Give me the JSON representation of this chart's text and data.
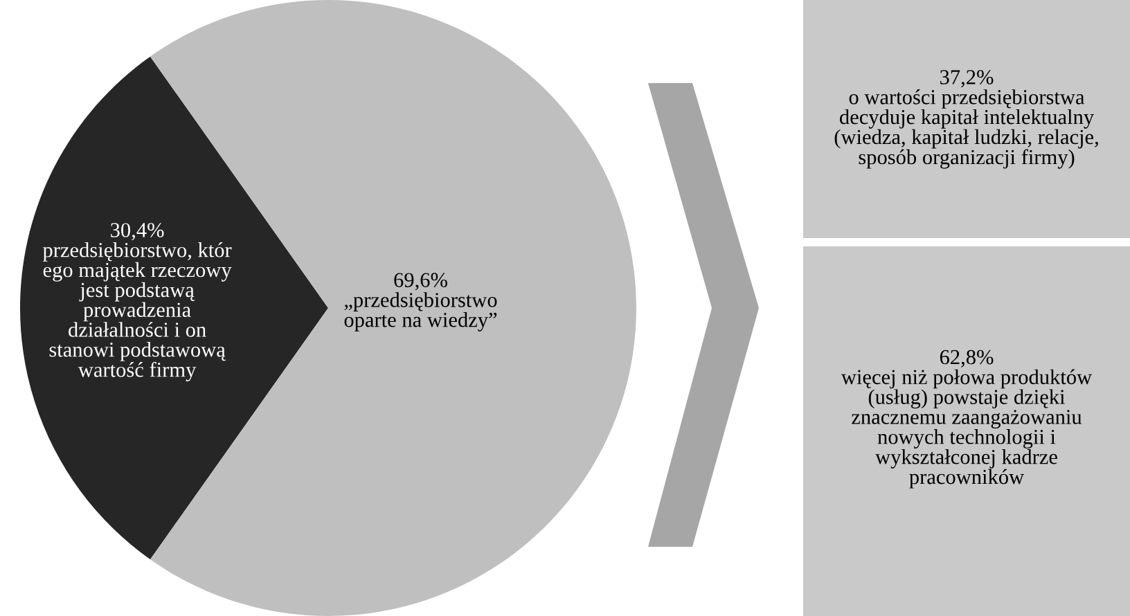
{
  "chart_data": [
    {
      "type": "pie",
      "categories": [
        "przedsiębiorstwo, któr\nego majątek rzeczowy\njest podstawą\nprowadzenia\ndziałalności i on\nstanowi podstawową\nwartość firmy",
        "„przedsiębiorstwo\noparte na wiedzy”"
      ],
      "values": [
        30.4,
        69.6
      ],
      "colors": [
        "#262626",
        "#bfbfbf"
      ],
      "value_labels": [
        "30,4%",
        "69,6%"
      ]
    },
    {
      "type": "other",
      "colors": [
        "#c9c9c9",
        "#c9c9c9"
      ],
      "annotations": [
        "37,2%\no wartości przedsiębiorstwa\ndecyduje kapitał intelektualny\n(wiedza, kapitał ludzki, relacje,\nsposób organizacji firmy)",
        "62,8%\nwięcej niż połowa produktów\n(usług) powstaje dzięki\nznacznemu zaangażowaniu\nnowych technologii i\nwykształconej kadrze\npracowników"
      ]
    }
  ]
}
